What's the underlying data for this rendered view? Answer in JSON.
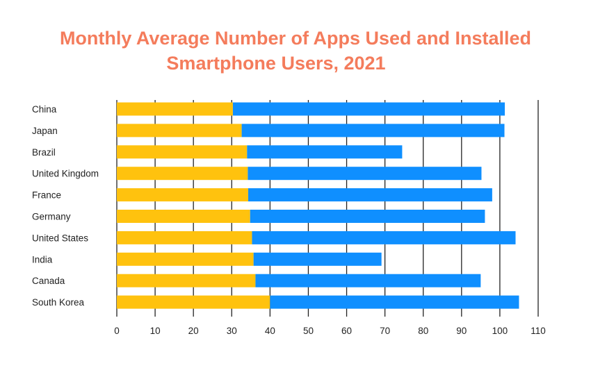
{
  "chart_data": {
    "type": "bar",
    "orientation": "horizontal",
    "stacked": true,
    "title_lines": [
      "Monthly Average Number of Apps Used and Installed",
      "Smartphone Users, 2021"
    ],
    "categories": [
      "China",
      "Japan",
      "Brazil",
      "United Kingdom",
      "France",
      "Germany",
      "United States",
      "India",
      "Canada",
      "South Korea"
    ],
    "series": [
      {
        "color": "#ffc20e",
        "values": [
          30.3,
          32.6,
          34.0,
          34.2,
          34.3,
          34.8,
          35.3,
          35.7,
          36.2,
          40.0
        ]
      },
      {
        "color": "#0f8fff",
        "values": [
          71.0,
          68.6,
          40.5,
          61.0,
          63.7,
          61.3,
          68.8,
          33.4,
          58.8,
          65.0
        ]
      }
    ],
    "x_ticks": [
      "0",
      "10",
      "20",
      "30",
      "40",
      "50",
      "60",
      "70",
      "80",
      "90",
      "100",
      "110"
    ],
    "xlim": [
      0,
      110
    ],
    "grid": "vertical",
    "xlabel": "",
    "ylabel": ""
  },
  "colors": {
    "title": "#f47c5c",
    "grid": "#222222"
  }
}
